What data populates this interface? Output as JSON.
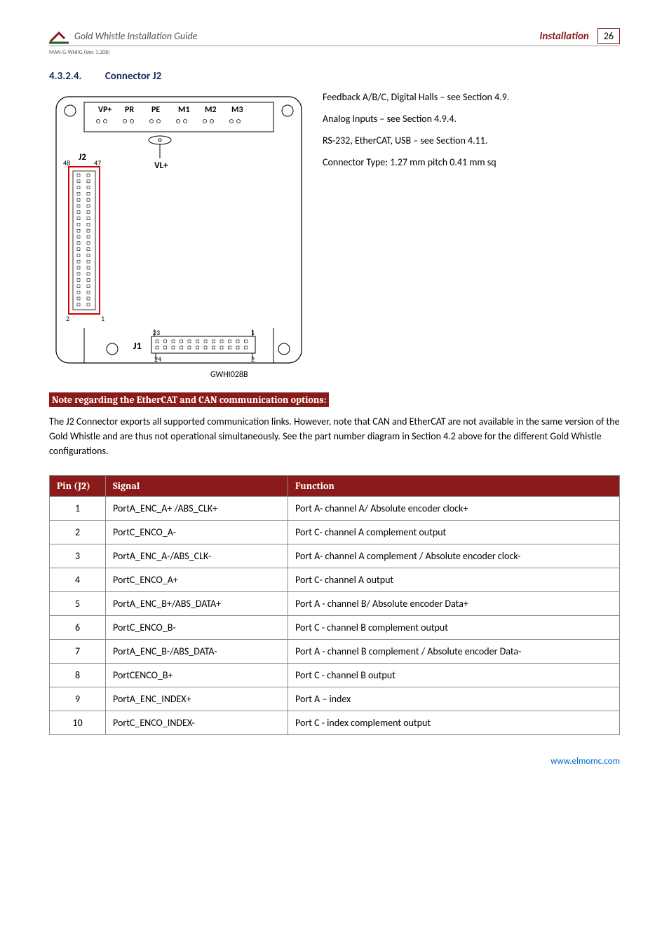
{
  "header": {
    "guide_title": "Gold Whistle Installation Guide",
    "section_label": "Installation",
    "page_number": "26",
    "version_line": "MAN-G-WHIIG (Ver. 1.208)"
  },
  "section": {
    "number": "4.3.2.4.",
    "title": "Connector J2"
  },
  "diagram": {
    "top_labels": [
      "VP+",
      "PR",
      "PE",
      "M1",
      "M2",
      "M3"
    ],
    "vl_label": "VL+",
    "j2_label": "J2",
    "j2_left_num": "48",
    "j2_right_num": "47",
    "j2_bot_left": "2",
    "j2_bot_right": "1",
    "j1_label": "J1",
    "j1_top_left": "23",
    "j1_top_right": "1",
    "j1_bot_left": "24",
    "j1_bot_right": "2",
    "caption": "GWHI028B"
  },
  "side_text": {
    "p1": "Feedback A/B/C, Digital Halls – see Section 4.9.",
    "p2": "Analog Inputs – see Section 4.9.4.",
    "p3": "RS-232, EtherCAT, USB – see Section 4.11.",
    "p4": "Connector Type: 1.27 mm pitch 0.41 mm sq"
  },
  "note_bar": "Note regarding the EtherCAT and CAN communication options:",
  "body_para": "The J2 Connector exports all supported communication links. However, note that CAN and EtherCAT are not available in the same version of the Gold Whistle and are thus not operational simultaneously. See the part number diagram in Section 4.2 above for the different Gold Whistle configurations.",
  "table": {
    "headers": [
      "Pin (J2)",
      "Signal",
      "Function"
    ],
    "rows": [
      [
        "1",
        "PortA_ENC_A+ /ABS_CLK+",
        "Port A- channel A/ Absolute encoder clock+"
      ],
      [
        "2",
        "PortC_ENCO_A-",
        "Port C- channel A complement output"
      ],
      [
        "3",
        "PortA_ENC_A-/ABS_CLK-",
        "Port A- channel A complement / Absolute encoder clock-"
      ],
      [
        "4",
        "PortC_ENCO_A+",
        "Port C- channel A output"
      ],
      [
        "5",
        "PortA_ENC_B+/ABS_DATA+",
        "Port A - channel B/ Absolute encoder Data+"
      ],
      [
        "6",
        "PortC_ENCO_B-",
        "Port C - channel B complement output"
      ],
      [
        "7",
        "PortA_ENC_B-/ABS_DATA-",
        "Port A - channel B complement / Absolute encoder Data-"
      ],
      [
        "8",
        "PortCENCO_B+",
        "Port C - channel B output"
      ],
      [
        "9",
        "PortA_ENC_INDEX+",
        "Port A – index"
      ],
      [
        "10",
        "PortC_ENCO_INDEX-",
        "Port C - index complement output"
      ]
    ]
  },
  "footer_link": "www.elmomc.com"
}
